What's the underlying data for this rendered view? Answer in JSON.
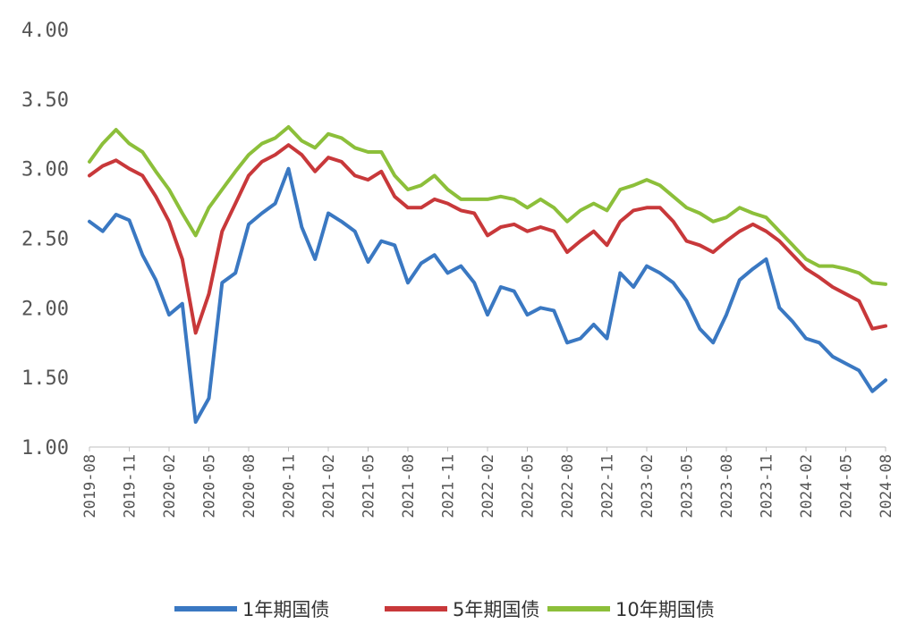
{
  "chart_data": {
    "type": "line",
    "x_axis_type": "date",
    "ylim": [
      1.0,
      4.0
    ],
    "y_ticks": [
      "1.00",
      "1.50",
      "2.00",
      "2.50",
      "3.00",
      "3.50",
      "4.00"
    ],
    "x_ticks": [
      "2019-08",
      "2019-11",
      "2020-02",
      "2020-05",
      "2020-08",
      "2020-11",
      "2021-02",
      "2021-05",
      "2021-08",
      "2021-11",
      "2022-02",
      "2022-05",
      "2022-08",
      "2022-11",
      "2023-02",
      "2023-05",
      "2023-08",
      "2023-11",
      "2024-02",
      "2024-05",
      "2024-08"
    ],
    "grid": false,
    "legend_position": "bottom",
    "x": [
      "2019-08",
      "2019-09",
      "2019-10",
      "2019-11",
      "2019-12",
      "2020-01",
      "2020-02",
      "2020-03",
      "2020-04",
      "2020-05",
      "2020-06",
      "2020-07",
      "2020-08",
      "2020-09",
      "2020-10",
      "2020-11",
      "2020-12",
      "2021-01",
      "2021-02",
      "2021-03",
      "2021-04",
      "2021-05",
      "2021-06",
      "2021-07",
      "2021-08",
      "2021-09",
      "2021-10",
      "2021-11",
      "2021-12",
      "2022-01",
      "2022-02",
      "2022-03",
      "2022-04",
      "2022-05",
      "2022-06",
      "2022-07",
      "2022-08",
      "2022-09",
      "2022-10",
      "2022-11",
      "2022-12",
      "2023-01",
      "2023-02",
      "2023-03",
      "2023-04",
      "2023-05",
      "2023-06",
      "2023-07",
      "2023-08",
      "2023-09",
      "2023-10",
      "2023-11",
      "2023-12",
      "2024-01",
      "2024-02",
      "2024-03",
      "2024-04",
      "2024-05",
      "2024-06",
      "2024-07",
      "2024-08"
    ],
    "series": [
      {
        "name": "1年期国债",
        "color": "#3a78c2",
        "values": [
          2.62,
          2.55,
          2.67,
          2.63,
          2.38,
          2.2,
          1.95,
          2.03,
          1.18,
          1.35,
          2.18,
          2.25,
          2.6,
          2.68,
          2.75,
          3.0,
          2.58,
          2.35,
          2.68,
          2.62,
          2.55,
          2.33,
          2.48,
          2.45,
          2.18,
          2.32,
          2.38,
          2.25,
          2.3,
          2.18,
          1.95,
          2.15,
          2.12,
          1.95,
          2.0,
          1.98,
          1.75,
          1.78,
          1.88,
          1.78,
          2.25,
          2.15,
          2.3,
          2.25,
          2.18,
          2.05,
          1.85,
          1.75,
          1.95,
          2.2,
          2.28,
          2.35,
          2.0,
          1.9,
          1.78,
          1.75,
          1.65,
          1.6,
          1.55,
          1.4,
          1.48
        ]
      },
      {
        "name": "5年期国债",
        "color": "#c8383a",
        "values": [
          2.95,
          3.02,
          3.06,
          3.0,
          2.95,
          2.8,
          2.62,
          2.35,
          1.82,
          2.1,
          2.55,
          2.75,
          2.95,
          3.05,
          3.1,
          3.17,
          3.1,
          2.98,
          3.08,
          3.05,
          2.95,
          2.92,
          2.98,
          2.8,
          2.72,
          2.72,
          2.78,
          2.75,
          2.7,
          2.68,
          2.52,
          2.58,
          2.6,
          2.55,
          2.58,
          2.55,
          2.4,
          2.48,
          2.55,
          2.45,
          2.62,
          2.7,
          2.72,
          2.72,
          2.62,
          2.48,
          2.45,
          2.4,
          2.48,
          2.55,
          2.6,
          2.55,
          2.48,
          2.38,
          2.28,
          2.22,
          2.15,
          2.1,
          2.05,
          1.85,
          1.87
        ]
      },
      {
        "name": "10年期国债",
        "color": "#8cbf3a",
        "values": [
          3.05,
          3.18,
          3.28,
          3.18,
          3.12,
          2.98,
          2.85,
          2.68,
          2.52,
          2.72,
          2.85,
          2.98,
          3.1,
          3.18,
          3.22,
          3.3,
          3.2,
          3.15,
          3.25,
          3.22,
          3.15,
          3.12,
          3.12,
          2.95,
          2.85,
          2.88,
          2.95,
          2.85,
          2.78,
          2.78,
          2.78,
          2.8,
          2.78,
          2.72,
          2.78,
          2.72,
          2.62,
          2.7,
          2.75,
          2.7,
          2.85,
          2.88,
          2.92,
          2.88,
          2.8,
          2.72,
          2.68,
          2.62,
          2.65,
          2.72,
          2.68,
          2.65,
          2.55,
          2.45,
          2.35,
          2.3,
          2.3,
          2.28,
          2.25,
          2.18,
          2.17
        ]
      }
    ]
  }
}
